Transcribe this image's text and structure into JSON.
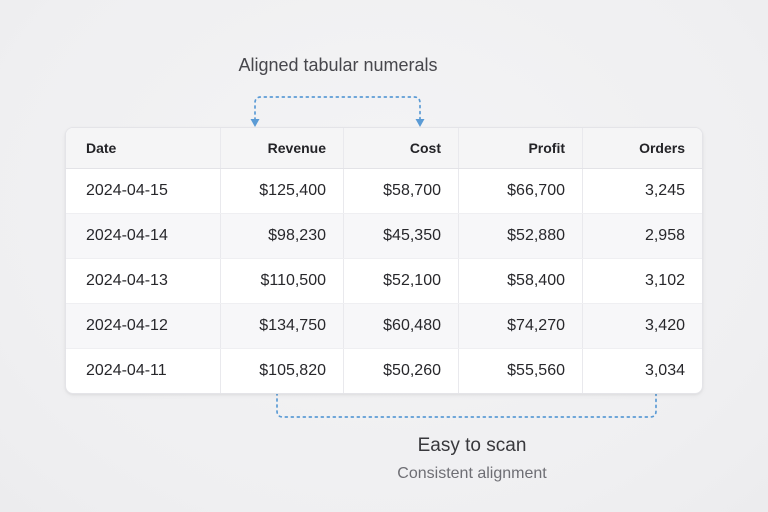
{
  "annotations": {
    "top_label": "Aligned tabular numerals",
    "bottom_label": "Easy to scan",
    "bottom_sublabel": "Consistent alignment",
    "accent_color": "#5b9bd5"
  },
  "table": {
    "columns": [
      "Date",
      "Revenue",
      "Cost",
      "Profit",
      "Orders"
    ],
    "rows": [
      [
        "2024-04-15",
        "$125,400",
        "$58,700",
        "$66,700",
        "3,245"
      ],
      [
        "2024-04-14",
        "$98,230",
        "$45,350",
        "$52,880",
        "2,958"
      ],
      [
        "2024-04-13",
        "$110,500",
        "$52,100",
        "$58,400",
        "3,102"
      ],
      [
        "2024-04-12",
        "$134,750",
        "$60,480",
        "$74,270",
        "3,420"
      ],
      [
        "2024-04-11",
        "$105,820",
        "$50,260",
        "$55,560",
        "3,034"
      ]
    ]
  },
  "chart_data": {
    "type": "table",
    "title": "Aligned tabular numerals",
    "columns": [
      "Date",
      "Revenue",
      "Cost",
      "Profit",
      "Orders"
    ],
    "rows": [
      {
        "date": "2024-04-15",
        "revenue": 125400,
        "cost": 58700,
        "profit": 66700,
        "orders": 3245
      },
      {
        "date": "2024-04-14",
        "revenue": 98230,
        "cost": 45350,
        "profit": 52880,
        "orders": 2958
      },
      {
        "date": "2024-04-13",
        "revenue": 110500,
        "cost": 52100,
        "profit": 58400,
        "orders": 3102
      },
      {
        "date": "2024-04-12",
        "revenue": 134750,
        "cost": 60480,
        "profit": 74270,
        "orders": 3420
      },
      {
        "date": "2024-04-11",
        "revenue": 105820,
        "cost": 50260,
        "profit": 55560,
        "orders": 3034
      }
    ],
    "annotations": [
      "Easy to scan",
      "Consistent alignment"
    ],
    "layout_hints": {
      "numeric_columns_right_aligned": true,
      "zebra_striping": true
    }
  }
}
